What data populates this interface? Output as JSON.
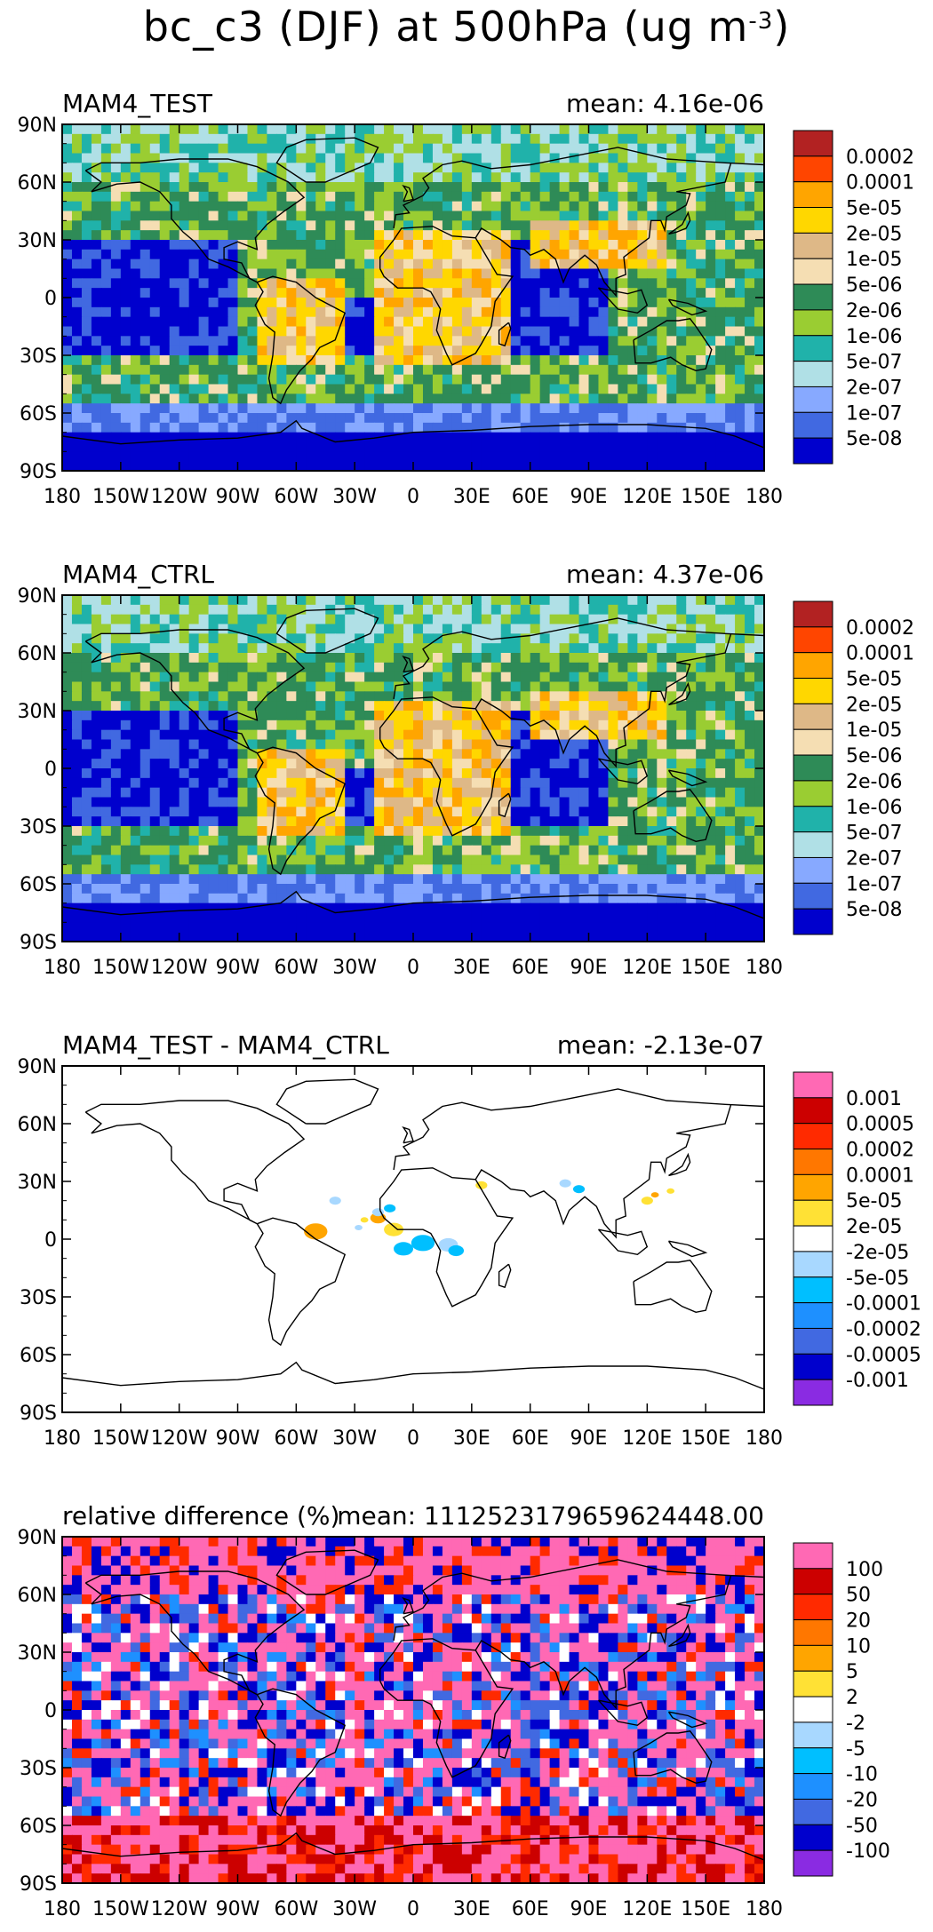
{
  "figure_title": {
    "main": "bc_c3 (DJF) at 500hPa (ug m",
    "exponent": "-3",
    "close": ")"
  },
  "chart_data": [
    {
      "type": "heatmap",
      "id": "test",
      "title": "MAM4_TEST",
      "mean_text": "mean: 4.16e-06",
      "xlim": [
        -180,
        180
      ],
      "ylim": [
        -90,
        90
      ],
      "x_ticks": [
        "180",
        "150W",
        "120W",
        "90W",
        "60W",
        "30W",
        "0",
        "30E",
        "60E",
        "90E",
        "120E",
        "150E",
        "180"
      ],
      "y_ticks": [
        "90N",
        "60N",
        "30N",
        "0",
        "30S",
        "60S",
        "90S"
      ],
      "colorbar": {
        "labels": [
          "0.0002",
          "0.0001",
          "5e-05",
          "2e-05",
          "1e-05",
          "5e-06",
          "2e-06",
          "1e-06",
          "5e-07",
          "2e-07",
          "1e-07",
          "5e-08"
        ],
        "colors": [
          "#b22222",
          "#ff4500",
          "#ffa500",
          "#ffd700",
          "#deb887",
          "#f5deb3",
          "#2e8b57",
          "#9acd32",
          "#20b2aa",
          "#b0e0e6",
          "#87a9ff",
          "#4169e1",
          "#0000cd"
        ]
      }
    },
    {
      "type": "heatmap",
      "id": "ctrl",
      "title": "MAM4_CTRL",
      "mean_text": "mean: 4.37e-06",
      "xlim": [
        -180,
        180
      ],
      "ylim": [
        -90,
        90
      ],
      "x_ticks": [
        "180",
        "150W",
        "120W",
        "90W",
        "60W",
        "30W",
        "0",
        "30E",
        "60E",
        "90E",
        "120E",
        "150E",
        "180"
      ],
      "y_ticks": [
        "90N",
        "60N",
        "30N",
        "0",
        "30S",
        "60S",
        "90S"
      ],
      "colorbar": {
        "labels": [
          "0.0002",
          "0.0001",
          "5e-05",
          "2e-05",
          "1e-05",
          "5e-06",
          "2e-06",
          "1e-06",
          "5e-07",
          "2e-07",
          "1e-07",
          "5e-08"
        ],
        "colors": [
          "#b22222",
          "#ff4500",
          "#ffa500",
          "#ffd700",
          "#deb887",
          "#f5deb3",
          "#2e8b57",
          "#9acd32",
          "#20b2aa",
          "#b0e0e6",
          "#87a9ff",
          "#4169e1",
          "#0000cd"
        ]
      }
    },
    {
      "type": "heatmap",
      "id": "diff",
      "title": "MAM4_TEST - MAM4_CTRL",
      "mean_text": "mean: -2.13e-07",
      "xlim": [
        -180,
        180
      ],
      "ylim": [
        -90,
        90
      ],
      "x_ticks": [
        "180",
        "150W",
        "120W",
        "90W",
        "60W",
        "30W",
        "0",
        "30E",
        "60E",
        "90E",
        "120E",
        "150E",
        "180"
      ],
      "y_ticks": [
        "90N",
        "60N",
        "30N",
        "0",
        "30S",
        "60S",
        "90S"
      ],
      "colorbar": {
        "labels": [
          "0.001",
          "0.0005",
          "0.0002",
          "0.0001",
          "5e-05",
          "2e-05",
          "-2e-05",
          "-5e-05",
          "-0.0001",
          "-0.0002",
          "-0.0005",
          "-0.001"
        ],
        "colors": [
          "#ff69b4",
          "#cc0000",
          "#ff2a00",
          "#ff7700",
          "#ffa500",
          "#ffe135",
          "#ffffff",
          "#a8d8ff",
          "#00bfff",
          "#1e90ff",
          "#4169e1",
          "#0000cd",
          "#8a2be2"
        ]
      }
    },
    {
      "type": "heatmap",
      "id": "rel",
      "title": "relative difference (%)",
      "mean_text": "mean: 1112523179659624448.00",
      "xlim": [
        -180,
        180
      ],
      "ylim": [
        -90,
        90
      ],
      "x_ticks": [
        "180",
        "150W",
        "120W",
        "90W",
        "60W",
        "30W",
        "0",
        "30E",
        "60E",
        "90E",
        "120E",
        "150E",
        "180"
      ],
      "y_ticks": [
        "90N",
        "60N",
        "30N",
        "0",
        "30S",
        "60S",
        "90S"
      ],
      "colorbar": {
        "labels": [
          "100",
          "50",
          "20",
          "10",
          "5",
          "2",
          "-2",
          "-5",
          "-10",
          "-20",
          "-50",
          "-100"
        ],
        "colors": [
          "#ff69b4",
          "#cc0000",
          "#ff2a00",
          "#ff7700",
          "#ffa500",
          "#ffe135",
          "#ffffff",
          "#a8d8ff",
          "#00bfff",
          "#1e90ff",
          "#4169e1",
          "#0000cd",
          "#8a2be2"
        ]
      }
    }
  ]
}
